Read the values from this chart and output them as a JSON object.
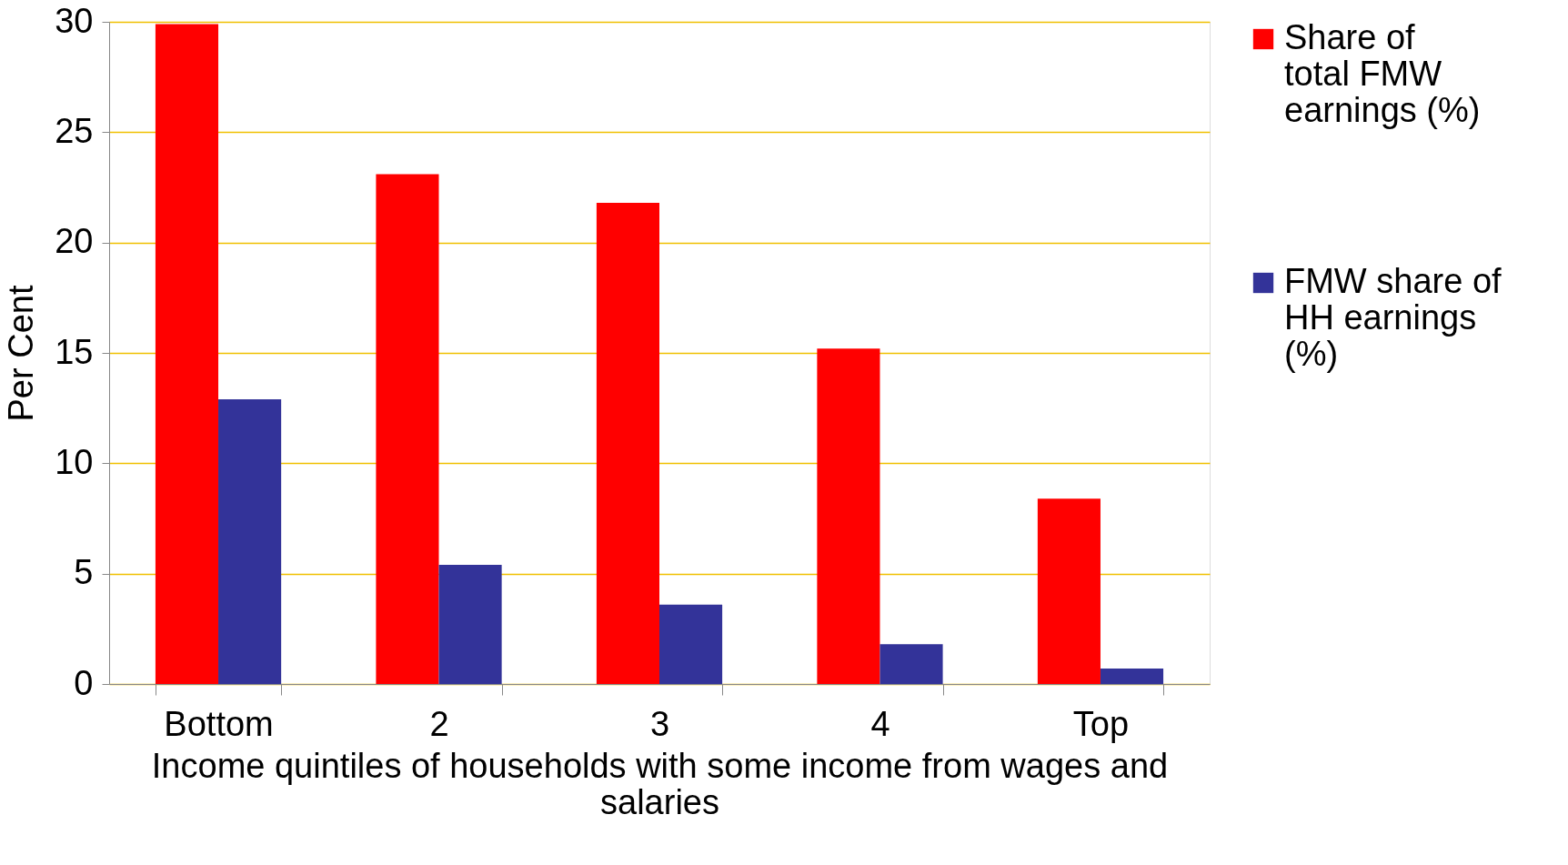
{
  "chart_data": {
    "type": "bar",
    "xlabel": "Income quintiles of households with some income from wages and salaries",
    "ylabel": "Per Cent",
    "categories": [
      "Bottom",
      "2",
      "3",
      "4",
      "Top"
    ],
    "series": [
      {
        "name": "Share of total FMW earnings (%)",
        "color": "#ff0000",
        "values": [
          29.9,
          23.1,
          21.8,
          15.2,
          8.4
        ]
      },
      {
        "name": "FMW share of HH earnings (%)",
        "color": "#333399",
        "values": [
          12.9,
          5.4,
          3.6,
          1.8,
          0.7
        ]
      }
    ],
    "ylim": [
      0,
      30
    ],
    "yticks": [
      0,
      5,
      10,
      15,
      20,
      25,
      30
    ],
    "grid": "y",
    "legend": "right"
  }
}
